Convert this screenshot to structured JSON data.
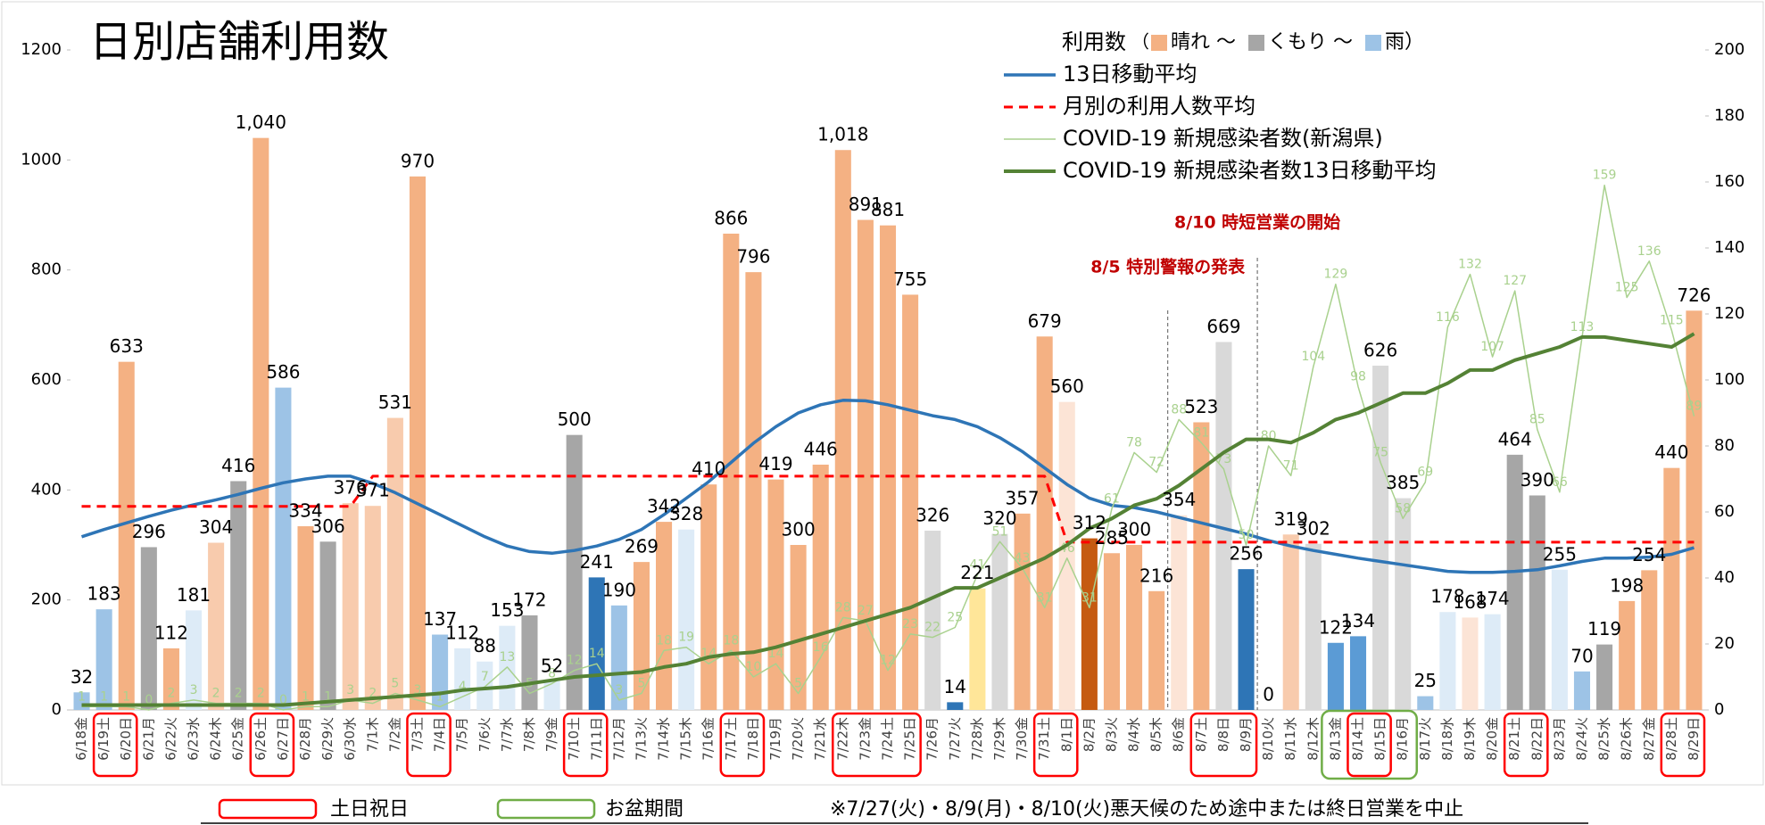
{
  "chart_data": {
    "type": "bar",
    "title": "日別店舗利用数",
    "categories": [
      "6/18金",
      "6/19土",
      "6/20日",
      "6/21月",
      "6/22火",
      "6/23水",
      "6/24木",
      "6/25金",
      "6/26土",
      "6/27日",
      "6/28月",
      "6/29火",
      "6/30水",
      "7/1木",
      "7/2金",
      "7/3土",
      "7/4日",
      "7/5月",
      "7/6火",
      "7/7水",
      "7/8木",
      "7/9金",
      "7/10土",
      "7/11日",
      "7/12月",
      "7/13火",
      "7/14水",
      "7/15木",
      "7/16金",
      "7/17土",
      "7/18日",
      "7/19月",
      "7/20火",
      "7/21水",
      "7/22木",
      "7/23金",
      "7/24土",
      "7/25日",
      "7/26月",
      "7/27火",
      "7/28水",
      "7/29木",
      "7/30金",
      "7/31土",
      "8/1日",
      "8/2月",
      "8/3火",
      "8/4水",
      "8/5木",
      "8/6金",
      "8/7土",
      "8/8日",
      "8/9月",
      "8/10火",
      "8/11水",
      "8/12木",
      "8/13金",
      "8/14土",
      "8/15日",
      "8/16月",
      "8/17火",
      "8/18水",
      "8/19木",
      "8/20金",
      "8/21土",
      "8/22日",
      "8/23月",
      "8/24火",
      "8/25水",
      "8/26木",
      "8/27金",
      "8/28土",
      "8/29日"
    ],
    "series": [
      {
        "name": "利用数",
        "kind": "bar",
        "values": [
          32,
          183,
          633,
          296,
          112,
          181,
          304,
          416,
          1040,
          586,
          334,
          306,
          376,
          371,
          531,
          970,
          137,
          112,
          88,
          153,
          172,
          52,
          500,
          241,
          190,
          269,
          342,
          328,
          410,
          866,
          796,
          419,
          300,
          446,
          1018,
          891,
          881,
          755,
          326,
          14,
          221,
          320,
          357,
          679,
          560,
          312,
          285,
          300,
          216,
          354,
          523,
          669,
          256,
          0,
          319,
          302,
          122,
          134,
          626,
          385,
          25,
          178,
          168,
          174,
          464,
          390,
          255,
          70,
          119,
          198,
          254,
          440,
          726
        ],
        "value_labels": [
          "32",
          "183",
          "633",
          "296",
          "112",
          "181",
          "304",
          "416",
          "1,040",
          "586",
          "334",
          "306",
          "376",
          "371",
          "531",
          "970",
          "137",
          "112",
          "88",
          "153",
          "172",
          "52",
          "500",
          "241",
          "190",
          "269",
          "342",
          "328",
          "410",
          "866",
          "796",
          "419",
          "300",
          "446",
          "1,018",
          "891",
          "881",
          "755",
          "326",
          "14",
          "221",
          "320",
          "357",
          "679",
          "560",
          "312",
          "285",
          "300",
          "216",
          "354",
          "523",
          "669",
          "256",
          "0",
          "319",
          "302",
          "122",
          "134",
          "626",
          "385",
          "25",
          "178",
          "168",
          "174",
          "464",
          "390",
          "255",
          "70",
          "119",
          "198",
          "254",
          "440",
          "726"
        ],
        "colors": [
          "#9dc3e6",
          "#9dc3e6",
          "#f4b183",
          "#a6a6a6",
          "#f4b183",
          "#ddebf7",
          "#f8cbad",
          "#a6a6a6",
          "#f4b183",
          "#9dc3e6",
          "#f4b183",
          "#a6a6a6",
          "#f8cbad",
          "#f8cbad",
          "#f8cbad",
          "#f4b183",
          "#9dc3e6",
          "#ddebf7",
          "#ddebf7",
          "#ddebf7",
          "#a6a6a6",
          "#ddebf7",
          "#a6a6a6",
          "#2e75b6",
          "#9dc3e6",
          "#f4b183",
          "#f4b183",
          "#ddebf7",
          "#f4b183",
          "#f4b183",
          "#f4b183",
          "#f4b183",
          "#f4b183",
          "#f4b183",
          "#f4b183",
          "#f4b183",
          "#f4b183",
          "#f4b183",
          "#d9d9d9",
          "#2e75b6",
          "#ffe699",
          "#d9d9d9",
          "#f4b183",
          "#f4b183",
          "#fce4d6",
          "#c55a11",
          "#f4b183",
          "#f4b183",
          "#f4b183",
          "#fce4d6",
          "#f4b183",
          "#d9d9d9",
          "#2e75b6",
          "#f4b183",
          "#f8cbad",
          "#d9d9d9",
          "#5b9bd5",
          "#5b9bd5",
          "#d9d9d9",
          "#d9d9d9",
          "#9dc3e6",
          "#ddebf7",
          "#fce4d6",
          "#ddebf7",
          "#a6a6a6",
          "#a6a6a6",
          "#ddebf7",
          "#9dc3e6",
          "#a6a6a6",
          "#f4b183",
          "#f4b183",
          "#f4b183",
          "#f4b183"
        ]
      },
      {
        "name": "13日移動平均",
        "kind": "line",
        "color": "#2e75b6",
        "width": 3.5,
        "values": [
          315,
          328,
          340,
          352,
          363,
          373,
          382,
          392,
          403,
          413,
          420,
          425,
          425,
          412,
          395,
          375,
          355,
          335,
          315,
          298,
          288,
          285,
          290,
          298,
          310,
          328,
          355,
          385,
          415,
          450,
          485,
          515,
          540,
          555,
          563,
          562,
          555,
          545,
          535,
          528,
          515,
          495,
          470,
          440,
          410,
          385,
          372,
          368,
          360,
          350,
          340,
          330,
          320,
          308,
          298,
          290,
          283,
          276,
          270,
          264,
          258,
          252,
          250,
          250,
          252,
          255,
          262,
          270,
          276,
          276,
          278,
          283,
          295
        ]
      },
      {
        "name": "月別の利用人数平均",
        "kind": "line",
        "color": "#ff0000",
        "width": 3,
        "dash": true,
        "values": [
          370,
          370,
          370,
          370,
          370,
          370,
          370,
          370,
          370,
          370,
          370,
          370,
          370,
          425,
          425,
          425,
          425,
          425,
          425,
          425,
          425,
          425,
          425,
          425,
          425,
          425,
          425,
          425,
          425,
          425,
          425,
          425,
          425,
          425,
          425,
          425,
          425,
          425,
          425,
          425,
          425,
          425,
          425,
          425,
          305,
          305,
          305,
          305,
          305,
          305,
          305,
          305,
          305,
          305,
          305,
          305,
          305,
          305,
          305,
          305,
          305,
          305,
          305,
          305,
          305,
          305,
          305,
          305,
          305,
          305,
          305,
          305,
          305
        ]
      },
      {
        "name": "COVID-19 新規感染者数(新潟県)",
        "kind": "line",
        "axis": "y2",
        "color": "#a9d18e",
        "width": 1.5,
        "labels": true,
        "values": [
          1,
          1,
          1,
          0,
          2,
          3,
          2,
          2,
          2,
          0,
          1,
          1,
          3,
          2,
          5,
          3,
          1,
          4,
          7,
          13,
          5,
          8,
          12,
          14,
          3,
          5,
          18,
          19,
          14,
          18,
          10,
          14,
          5,
          16,
          28,
          27,
          12,
          23,
          22,
          25,
          41,
          51,
          43,
          31,
          46,
          31,
          61,
          78,
          72,
          88,
          81,
          73,
          50,
          80,
          71,
          104,
          129,
          98,
          75,
          58,
          69,
          116,
          132,
          107,
          127,
          85,
          66,
          113,
          159,
          125,
          136,
          115,
          89
        ]
      },
      {
        "name": "COVID-19 新規感染者数13日移動平均",
        "kind": "line",
        "axis": "y2",
        "color": "#548235",
        "width": 4,
        "values": [
          1.5,
          1.5,
          1.5,
          1.5,
          1.5,
          1.5,
          1.5,
          1.5,
          1.5,
          1.5,
          2,
          2.5,
          3,
          3.5,
          4,
          4.5,
          5,
          6,
          6.5,
          7,
          8,
          9,
          10,
          10.5,
          11,
          11.5,
          13,
          14,
          16,
          17,
          17.5,
          19,
          21,
          23,
          25,
          27,
          29,
          31,
          34,
          37,
          37,
          40,
          43,
          46,
          50,
          55,
          58,
          62,
          64,
          68,
          73,
          78,
          82,
          82,
          81,
          84,
          88,
          90,
          93,
          96,
          96,
          99,
          103,
          103,
          106,
          108,
          110,
          113,
          113,
          112,
          111,
          110,
          114
        ]
      }
    ],
    "ylim": [
      0,
      1200
    ],
    "yticks": [
      0,
      200,
      400,
      600,
      800,
      1000,
      1200
    ],
    "y2lim": [
      0,
      200
    ],
    "y2ticks": [
      0,
      20,
      40,
      60,
      80,
      100,
      120,
      140,
      160,
      180,
      200
    ],
    "legend_paren": "（",
    "weather_legend": [
      {
        "label": "晴れ ～",
        "color": "#f4b183"
      },
      {
        "label": "くもり ～",
        "color": "#a6a6a6"
      },
      {
        "label": "雨）",
        "color": "#9dc3e6"
      }
    ],
    "annotations": [
      "8/5 特別警報の発表",
      "8/10 時短営業の開始"
    ],
    "footer": {
      "holiday": "土日祝日",
      "obon": "お盆期間",
      "note": "※7/27(火)・8/9(月)・8/10(火)悪天候のため途中または終日営業を中止"
    }
  }
}
